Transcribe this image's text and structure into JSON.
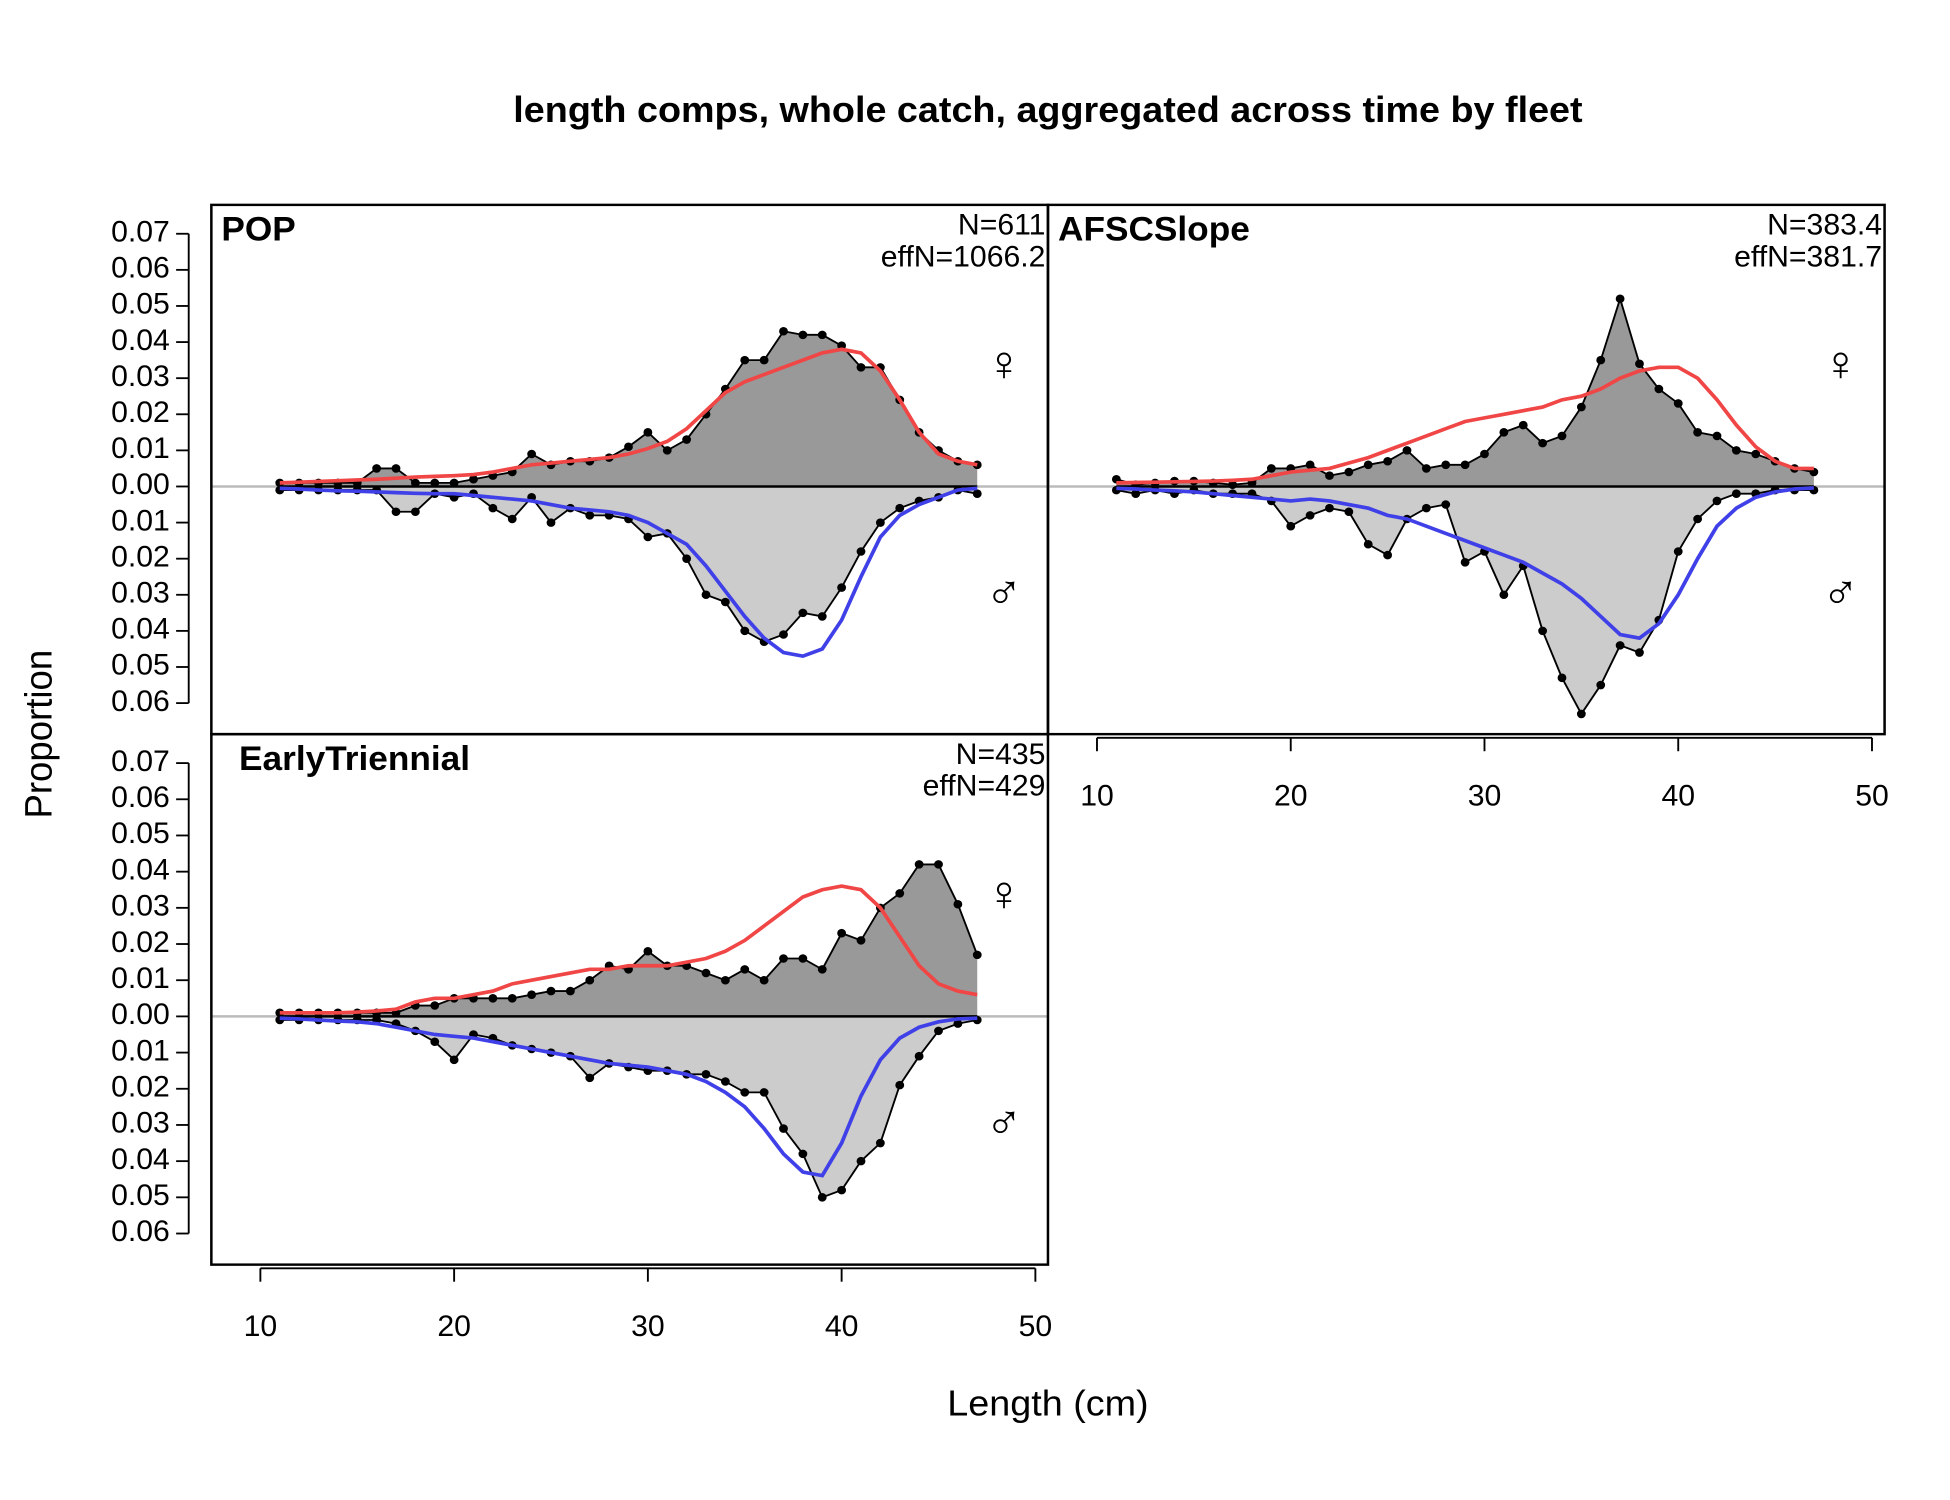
{
  "title": "length comps, whole catch, aggregated across time by fleet",
  "x_label": "Length (cm)",
  "y_label": "Proportion",
  "symbols": [
    "♀",
    "♂"
  ],
  "chart_data": [
    {
      "type": "area",
      "title": "POP",
      "annotations": [
        "N=611",
        "effN=1066.2"
      ],
      "x": [
        11,
        12,
        13,
        14,
        15,
        16,
        17,
        18,
        19,
        20,
        21,
        22,
        23,
        24,
        25,
        26,
        27,
        28,
        29,
        30,
        31,
        32,
        33,
        34,
        35,
        36,
        37,
        38,
        39,
        40,
        41,
        42,
        43,
        44,
        45,
        46,
        47
      ],
      "xlim": [
        7.47,
        50.65
      ],
      "ylim": [
        -0.0686,
        0.078
      ],
      "yticks": [
        0.07,
        0.06,
        0.05,
        0.04,
        0.03,
        0.02,
        0.01,
        {
          "value": 0,
          "label": "0.00"
        },
        {
          "value": -0.01,
          "label": "0.01"
        },
        {
          "value": -0.02,
          "label": "0.02"
        },
        {
          "value": -0.03,
          "label": "0.03"
        },
        {
          "value": -0.04,
          "label": "0.04"
        },
        {
          "value": -0.05,
          "label": "0.05"
        },
        {
          "value": -0.06,
          "label": "0.06"
        }
      ],
      "series": [
        {
          "kind": "observed",
          "color": "#999999",
          "values": [
            0.001,
            0.001,
            0.001,
            0.001,
            0.001,
            0.005,
            0.005,
            0.001,
            0.001,
            0.001,
            0.002,
            0.003,
            0.004,
            0.009,
            0.006,
            0.007,
            0.007,
            0.008,
            0.011,
            0.015,
            0.01,
            0.013,
            0.02,
            0.027,
            0.035,
            0.035,
            0.043,
            0.042,
            0.042,
            0.039,
            0.033,
            0.033,
            0.024,
            0.015,
            0.01,
            0.007,
            0.006
          ]
        },
        {
          "kind": "observed",
          "color": "#cccccc",
          "values": [
            -0.001,
            -0.001,
            -0.001,
            -0.001,
            -0.001,
            -0.001,
            -0.007,
            -0.007,
            -0.002,
            -0.003,
            -0.002,
            -0.006,
            -0.009,
            -0.003,
            -0.01,
            -0.006,
            -0.008,
            -0.008,
            -0.009,
            -0.014,
            -0.013,
            -0.02,
            -0.03,
            -0.032,
            -0.04,
            -0.043,
            -0.041,
            -0.035,
            -0.036,
            -0.028,
            -0.018,
            -0.01,
            -0.006,
            -0.004,
            -0.003,
            -0.001,
            -0.002
          ]
        },
        {
          "kind": "expected",
          "color": "#f04646",
          "values": [
            0.001,
            0.0012,
            0.0014,
            0.0016,
            0.0018,
            0.002,
            0.0023,
            0.0026,
            0.0028,
            0.003,
            0.0033,
            0.004,
            0.005,
            0.006,
            0.0065,
            0.007,
            0.0075,
            0.008,
            0.009,
            0.0105,
            0.0125,
            0.016,
            0.021,
            0.026,
            0.029,
            0.031,
            0.033,
            0.035,
            0.037,
            0.038,
            0.037,
            0.032,
            0.024,
            0.015,
            0.009,
            0.007,
            0.006
          ]
        },
        {
          "kind": "expected",
          "color": "#4040e8",
          "values": [
            -0.0005,
            -0.0007,
            -0.001,
            -0.0012,
            -0.0013,
            -0.0015,
            -0.0017,
            -0.0019,
            -0.002,
            -0.002,
            -0.0025,
            -0.003,
            -0.0035,
            -0.004,
            -0.005,
            -0.006,
            -0.0065,
            -0.007,
            -0.008,
            -0.01,
            -0.013,
            -0.016,
            -0.022,
            -0.029,
            -0.036,
            -0.042,
            -0.046,
            -0.047,
            -0.045,
            -0.037,
            -0.025,
            -0.014,
            -0.008,
            -0.005,
            -0.003,
            -0.001,
            -0.0005
          ]
        }
      ]
    },
    {
      "type": "area",
      "title": "AFSCSlope",
      "annotations": [
        "N=383.4",
        "effN=381.7"
      ],
      "x": [
        11,
        12,
        13,
        14,
        15,
        16,
        17,
        18,
        19,
        20,
        21,
        22,
        23,
        24,
        25,
        26,
        27,
        28,
        29,
        30,
        31,
        32,
        33,
        34,
        35,
        36,
        37,
        38,
        39,
        40,
        41,
        42,
        43,
        44,
        45,
        46,
        47
      ],
      "xlim": [
        7.47,
        50.65
      ],
      "xticks": [
        10,
        20,
        30,
        40,
        50
      ],
      "ylim": [
        -0.0686,
        0.078
      ],
      "series": [
        {
          "kind": "observed",
          "color": "#999999",
          "values": [
            0.002,
            0.0005,
            0.001,
            0.0015,
            0.0015,
            0.001,
            0.0005,
            0.001,
            0.005,
            0.005,
            0.006,
            0.003,
            0.004,
            0.006,
            0.007,
            0.01,
            0.005,
            0.006,
            0.006,
            0.009,
            0.015,
            0.017,
            0.012,
            0.014,
            0.022,
            0.035,
            0.052,
            0.034,
            0.027,
            0.023,
            0.015,
            0.014,
            0.01,
            0.009,
            0.007,
            0.005,
            0.004
          ]
        },
        {
          "kind": "observed",
          "color": "#cccccc",
          "values": [
            -0.001,
            -0.002,
            -0.001,
            -0.002,
            -0.001,
            -0.002,
            -0.002,
            -0.002,
            -0.004,
            -0.011,
            -0.008,
            -0.006,
            -0.007,
            -0.016,
            -0.019,
            -0.009,
            -0.006,
            -0.005,
            -0.021,
            -0.018,
            -0.03,
            -0.022,
            -0.04,
            -0.053,
            -0.063,
            -0.055,
            -0.044,
            -0.046,
            -0.037,
            -0.018,
            -0.009,
            -0.004,
            -0.002,
            -0.002,
            -0.001,
            -0.001,
            -0.001
          ]
        },
        {
          "kind": "expected",
          "color": "#f04646",
          "values": [
            0.001,
            0.0011,
            0.0012,
            0.0013,
            0.0014,
            0.0015,
            0.0017,
            0.002,
            0.003,
            0.004,
            0.0045,
            0.005,
            0.0065,
            0.008,
            0.01,
            0.012,
            0.014,
            0.016,
            0.018,
            0.019,
            0.02,
            0.021,
            0.022,
            0.024,
            0.025,
            0.027,
            0.03,
            0.032,
            0.033,
            0.033,
            0.03,
            0.024,
            0.017,
            0.011,
            0.007,
            0.005,
            0.005
          ]
        },
        {
          "kind": "expected",
          "color": "#4040e8",
          "values": [
            -0.0005,
            -0.0007,
            -0.001,
            -0.0012,
            -0.0015,
            -0.002,
            -0.0025,
            -0.003,
            -0.0035,
            -0.004,
            -0.0035,
            -0.004,
            -0.005,
            -0.006,
            -0.008,
            -0.009,
            -0.011,
            -0.013,
            -0.015,
            -0.017,
            -0.019,
            -0.021,
            -0.024,
            -0.027,
            -0.031,
            -0.036,
            -0.041,
            -0.042,
            -0.038,
            -0.03,
            -0.02,
            -0.011,
            -0.006,
            -0.003,
            -0.0015,
            -0.0007,
            -0.0004
          ]
        }
      ]
    },
    {
      "type": "area",
      "title": "EarlyTriennial",
      "annotations": [
        "N=435",
        "effN=429"
      ],
      "x": [
        11,
        12,
        13,
        14,
        15,
        16,
        17,
        18,
        19,
        20,
        21,
        22,
        23,
        24,
        25,
        26,
        27,
        28,
        29,
        30,
        31,
        32,
        33,
        34,
        35,
        36,
        37,
        38,
        39,
        40,
        41,
        42,
        43,
        44,
        45,
        46,
        47
      ],
      "xlim": [
        7.47,
        50.65
      ],
      "xticks": [
        10,
        20,
        30,
        40,
        50
      ],
      "ylim": [
        -0.0686,
        0.078
      ],
      "yticks": [
        0.07,
        0.06,
        0.05,
        0.04,
        0.03,
        0.02,
        0.01,
        {
          "value": 0,
          "label": "0.00"
        },
        {
          "value": -0.01,
          "label": "0.01"
        },
        {
          "value": -0.02,
          "label": "0.02"
        },
        {
          "value": -0.03,
          "label": "0.03"
        },
        {
          "value": -0.04,
          "label": "0.04"
        },
        {
          "value": -0.05,
          "label": "0.05"
        },
        {
          "value": -0.06,
          "label": "0.06"
        }
      ],
      "series": [
        {
          "kind": "observed",
          "color": "#999999",
          "values": [
            0.001,
            0.001,
            0.001,
            0.001,
            0.001,
            0.001,
            0.001,
            0.003,
            0.003,
            0.005,
            0.005,
            0.005,
            0.005,
            0.006,
            0.007,
            0.007,
            0.01,
            0.014,
            0.013,
            0.018,
            0.014,
            0.014,
            0.012,
            0.01,
            0.013,
            0.01,
            0.016,
            0.016,
            0.013,
            0.023,
            0.021,
            0.03,
            0.034,
            0.042,
            0.042,
            0.031,
            0.017
          ]
        },
        {
          "kind": "observed",
          "color": "#cccccc",
          "values": [
            -0.001,
            -0.001,
            -0.001,
            -0.001,
            -0.001,
            -0.001,
            -0.002,
            -0.004,
            -0.007,
            -0.012,
            -0.005,
            -0.006,
            -0.008,
            -0.009,
            -0.01,
            -0.011,
            -0.017,
            -0.013,
            -0.014,
            -0.015,
            -0.015,
            -0.016,
            -0.016,
            -0.018,
            -0.021,
            -0.021,
            -0.031,
            -0.038,
            -0.05,
            -0.048,
            -0.04,
            -0.035,
            -0.019,
            -0.011,
            -0.004,
            -0.002,
            -0.001
          ]
        },
        {
          "kind": "expected",
          "color": "#f04646",
          "values": [
            0.001,
            0.001,
            0.001,
            0.001,
            0.0012,
            0.0015,
            0.002,
            0.004,
            0.005,
            0.005,
            0.006,
            0.007,
            0.009,
            0.01,
            0.011,
            0.012,
            0.013,
            0.013,
            0.014,
            0.014,
            0.014,
            0.015,
            0.016,
            0.018,
            0.021,
            0.025,
            0.029,
            0.033,
            0.035,
            0.036,
            0.035,
            0.03,
            0.022,
            0.014,
            0.009,
            0.007,
            0.006
          ]
        },
        {
          "kind": "expected",
          "color": "#4040e8",
          "values": [
            -0.0005,
            -0.0007,
            -0.001,
            -0.0013,
            -0.0015,
            -0.002,
            -0.003,
            -0.004,
            -0.005,
            -0.0055,
            -0.006,
            -0.007,
            -0.008,
            -0.009,
            -0.01,
            -0.011,
            -0.012,
            -0.013,
            -0.0135,
            -0.014,
            -0.015,
            -0.016,
            -0.018,
            -0.021,
            -0.025,
            -0.031,
            -0.038,
            -0.043,
            -0.044,
            -0.035,
            -0.022,
            -0.012,
            -0.006,
            -0.003,
            -0.0015,
            -0.0007,
            -0.0005
          ]
        }
      ]
    }
  ]
}
